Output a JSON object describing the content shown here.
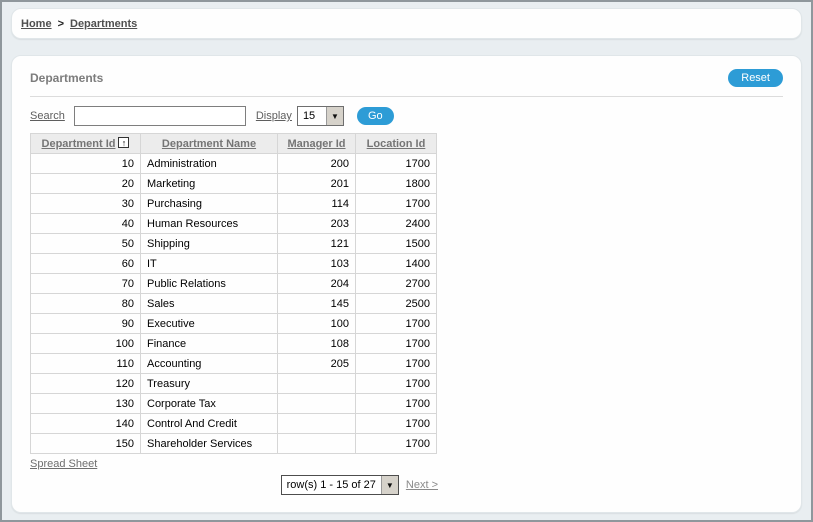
{
  "colors": {
    "accent_blue": "#2D9CD6",
    "page_bg": "#E9EEF1",
    "header_bg": "#ECECEC"
  },
  "breadcrumb": {
    "home": "Home",
    "separator": ">",
    "current": "Departments"
  },
  "region": {
    "title": "Departments",
    "reset_button": "Reset"
  },
  "toolbar": {
    "search_label": "Search",
    "search_value": "",
    "display_label": "Display",
    "display_value": "15",
    "go_button": "Go"
  },
  "table": {
    "columns": [
      {
        "label": "Department Id",
        "sorted": "asc",
        "sort_icon": "up-arrow"
      },
      {
        "label": "Department Name"
      },
      {
        "label": "Manager Id"
      },
      {
        "label": "Location Id"
      }
    ],
    "rows": [
      [
        "10",
        "Administration",
        "200",
        "1700"
      ],
      [
        "20",
        "Marketing",
        "201",
        "1800"
      ],
      [
        "30",
        "Purchasing",
        "114",
        "1700"
      ],
      [
        "40",
        "Human Resources",
        "203",
        "2400"
      ],
      [
        "50",
        "Shipping",
        "121",
        "1500"
      ],
      [
        "60",
        "IT",
        "103",
        "1400"
      ],
      [
        "70",
        "Public Relations",
        "204",
        "2700"
      ],
      [
        "80",
        "Sales",
        "145",
        "2500"
      ],
      [
        "90",
        "Executive",
        "100",
        "1700"
      ],
      [
        "100",
        "Finance",
        "108",
        "1700"
      ],
      [
        "110",
        "Accounting",
        "205",
        "1700"
      ],
      [
        "120",
        "Treasury",
        "",
        "1700"
      ],
      [
        "130",
        "Corporate Tax",
        "",
        "1700"
      ],
      [
        "140",
        "Control And Credit",
        "",
        "1700"
      ],
      [
        "150",
        "Shareholder Services",
        "",
        "1700"
      ]
    ]
  },
  "footer": {
    "spreadsheet_link": "Spread Sheet",
    "pagination_value": "row(s) 1 - 15 of 27",
    "next_link": "Next >",
    "sort_glyph": "↑",
    "dropdown_glyph": "▼"
  }
}
